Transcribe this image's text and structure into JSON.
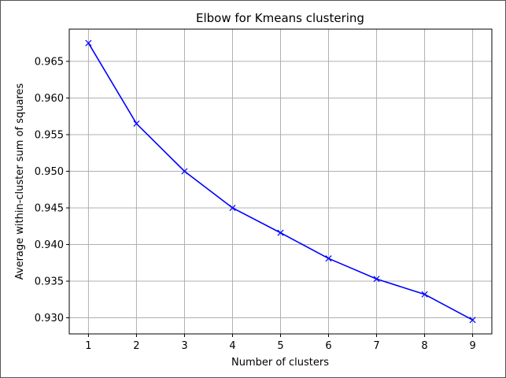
{
  "chart_data": {
    "type": "line",
    "title": "Elbow for Kmeans clustering",
    "xlabel": "Number of clusters",
    "ylabel": "Average within-cluster sum of squares",
    "x": [
      1,
      2,
      3,
      4,
      5,
      6,
      7,
      8,
      9
    ],
    "series": [
      {
        "values": [
          0.9675,
          0.9565,
          0.95,
          0.945,
          0.9416,
          0.9381,
          0.9353,
          0.9332,
          0.9297
        ],
        "color": "#0000ff",
        "marker": "x"
      }
    ],
    "xticks": [
      1,
      2,
      3,
      4,
      5,
      6,
      7,
      8,
      9
    ],
    "xtick_labels": [
      "1",
      "2",
      "3",
      "4",
      "5",
      "6",
      "7",
      "8",
      "9"
    ],
    "yticks": [
      0.93,
      0.935,
      0.94,
      0.945,
      0.95,
      0.955,
      0.96,
      0.965
    ],
    "ytick_labels": [
      "0.930",
      "0.935",
      "0.940",
      "0.945",
      "0.950",
      "0.955",
      "0.960",
      "0.965"
    ],
    "xlim": [
      0.6,
      9.4
    ],
    "ylim": [
      0.9278,
      0.9694
    ],
    "grid": true,
    "grid_color": "#b0b0b0",
    "axis_color": "#000000"
  }
}
